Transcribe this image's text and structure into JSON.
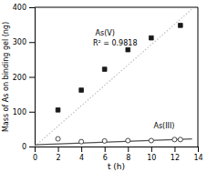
{
  "chart_data": {
    "type": "scatter",
    "xlabel": "t (h)",
    "ylabel": "Mass of As on binding gel (ng)",
    "xlim": [
      0,
      14
    ],
    "ylim": [
      0,
      400
    ],
    "xticks": [
      0,
      2,
      4,
      6,
      8,
      10,
      12,
      14
    ],
    "yticks": [
      0,
      100,
      200,
      300,
      400
    ],
    "grid": false,
    "series": [
      {
        "type": "line",
        "color": "#c0c0c0",
        "line_style": "dotted",
        "x": [
          0,
          13.5
        ],
        "values": [
          0,
          395
        ]
      },
      {
        "type": "line",
        "color": "#505050",
        "line_style": "solid",
        "x": [
          0,
          13.5
        ],
        "values": [
          5,
          22
        ]
      },
      {
        "type": "scatter",
        "color": "#1a1a1a",
        "marker": "square",
        "x": [
          2,
          4,
          6,
          8,
          10,
          12.5
        ],
        "values": [
          105,
          162,
          222,
          278,
          312,
          348
        ]
      },
      {
        "type": "scatter",
        "color": "#1a1a1a",
        "marker": "open-circle",
        "x": [
          2,
          4,
          6,
          8,
          10,
          12,
          12.5
        ],
        "values": [
          22,
          14,
          16,
          17,
          17,
          20,
          20
        ]
      }
    ],
    "annotations": [
      {
        "text": "As(V)",
        "x": 5.2,
        "y": 320
      },
      {
        "text": "R² = 0.9818",
        "x": 5.0,
        "y": 290
      },
      {
        "text": "As(III)",
        "x": 10.2,
        "y": 52
      }
    ]
  }
}
